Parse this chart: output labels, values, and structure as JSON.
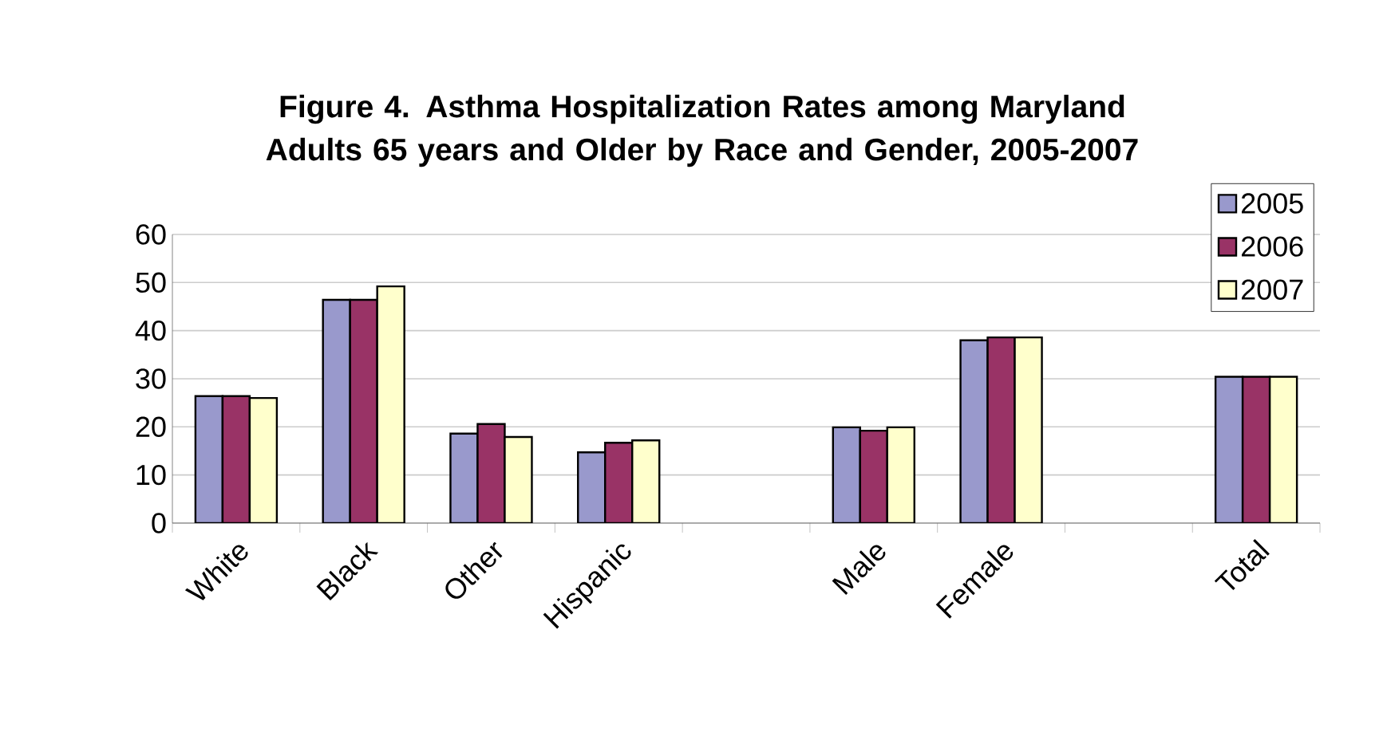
{
  "chart_data": {
    "type": "bar",
    "title": "Figure 4. Asthma Hospitalization Rates among Maryland Adults 65 years and Older by Race and Gender, 2005-2007",
    "categories": [
      "White",
      "Black",
      "Other",
      "Hispanic",
      null,
      "Male",
      "Female",
      null,
      "Total"
    ],
    "series": [
      {
        "name": "2005",
        "color": "#9999cc",
        "values": [
          26.4,
          46.4,
          18.6,
          14.7,
          null,
          19.9,
          38.0,
          null,
          30.4
        ]
      },
      {
        "name": "2006",
        "color": "#993366",
        "values": [
          26.4,
          46.4,
          20.6,
          16.7,
          null,
          19.2,
          38.6,
          null,
          30.4
        ]
      },
      {
        "name": "2007",
        "color": "#ffffcc",
        "values": [
          26.0,
          49.2,
          17.9,
          17.2,
          null,
          19.9,
          38.6,
          null,
          30.4
        ]
      }
    ],
    "ylim": [
      0,
      60
    ],
    "yticks": [
      0,
      10,
      20,
      30,
      40,
      50,
      60
    ],
    "grid": "y",
    "legend": "top right"
  }
}
